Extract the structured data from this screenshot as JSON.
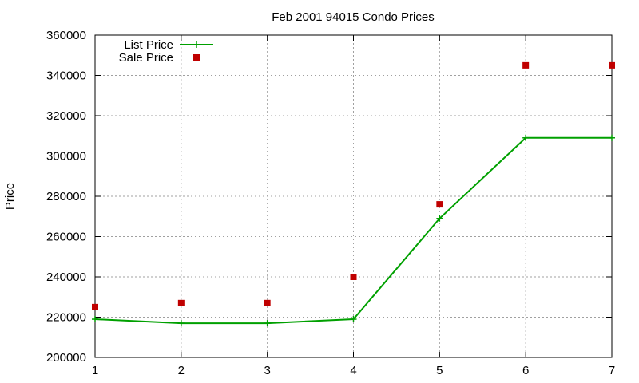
{
  "chart_data": {
    "type": "line",
    "title": "Feb 2001 94015 Condo Prices",
    "xlabel": "",
    "ylabel": "Price",
    "x": [
      1,
      2,
      3,
      4,
      5,
      6,
      7
    ],
    "xlim": [
      1,
      7
    ],
    "ylim": [
      200000,
      360000
    ],
    "x_ticks": [
      1,
      2,
      3,
      4,
      5,
      6,
      7
    ],
    "y_ticks": [
      200000,
      220000,
      240000,
      260000,
      280000,
      300000,
      320000,
      340000,
      360000
    ],
    "grid": true,
    "legend_position": "top-left",
    "series": [
      {
        "name": "List Price",
        "style": "line+points",
        "color": "#00a000",
        "values": [
          219000,
          217000,
          217000,
          219000,
          269000,
          309000,
          309000
        ]
      },
      {
        "name": "Sale Price",
        "style": "points",
        "color": "#c00000",
        "values": [
          225000,
          227000,
          227000,
          240000,
          276000,
          345000,
          345000
        ]
      }
    ]
  }
}
